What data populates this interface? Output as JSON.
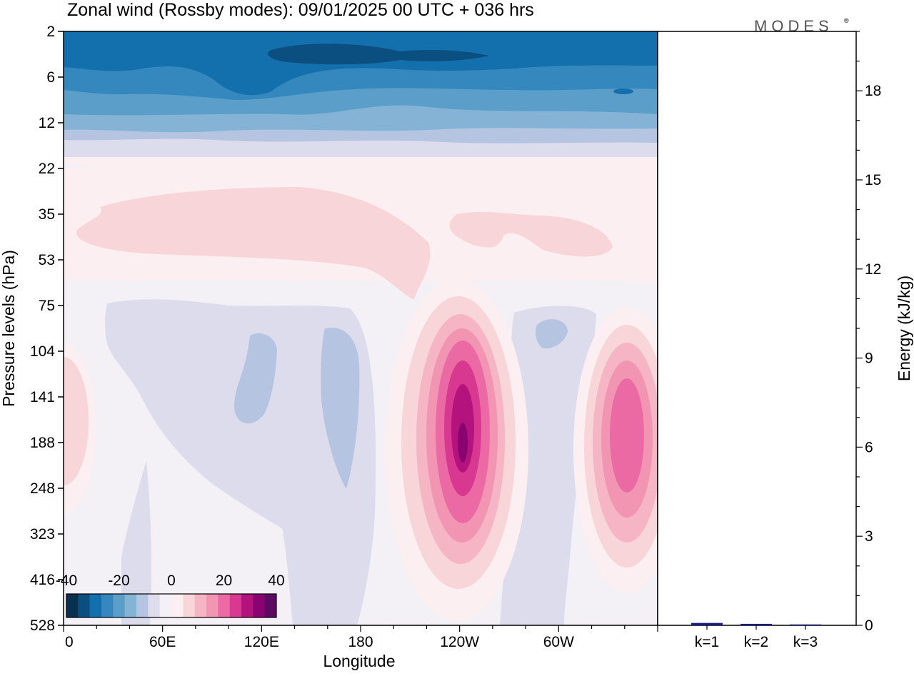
{
  "title": "Zonal wind (Rossby modes):  09/01/2025  00 UTC  + 036 hrs",
  "brand": "MODES",
  "brand_mark": "®",
  "colors": {
    "neg": [
      "#08304f",
      "#0b4f80",
      "#1470ad",
      "#3488bd",
      "#5a9ec9",
      "#85b3d6",
      "#b5c4e0",
      "#dcdcec"
    ],
    "near_zero": [
      "#f3f0f6",
      "#fbeff2"
    ],
    "pos": [
      "#f8d5d8",
      "#f6b5c4",
      "#f195b3",
      "#ec6aa4",
      "#d8388f",
      "#b4137e",
      "#8a0471",
      "#5c0a64"
    ]
  },
  "chart_data": [
    {
      "type": "heatmap",
      "field": "zonal wind (Rossby modes)",
      "xlabel": "Longitude",
      "ylabel": "Pressure levels (hPa)",
      "x_ticks": [
        "0",
        "60E",
        "120E",
        "180",
        "120W",
        "60W"
      ],
      "x_tick_degrees": [
        0,
        60,
        120,
        180,
        240,
        300
      ],
      "xlim": [
        0,
        360
      ],
      "y_levels": [
        "2",
        "6",
        "12",
        "22",
        "35",
        "53",
        "75",
        "104",
        "141",
        "188",
        "248",
        "323",
        "416",
        "528"
      ],
      "ylim": [
        2,
        528
      ],
      "colorbar": {
        "ticks": [
          "-40",
          "-20",
          "0",
          "20",
          "40"
        ],
        "range": [
          -40,
          40
        ],
        "bins": 18
      },
      "features": [
        {
          "longitude": 240,
          "pressure": 188,
          "value": 42
        },
        {
          "longitude": 340,
          "pressure": 188,
          "value": 22
        },
        {
          "longitude": 0,
          "pressure": 188,
          "value": 5
        },
        {
          "longitude": 70,
          "pressure": 4,
          "value": -32
        },
        {
          "longitude": 200,
          "pressure": 4,
          "value": -35
        },
        {
          "longitude": 160,
          "pressure": 160,
          "value": -8
        },
        {
          "longitude": 290,
          "pressure": 104,
          "value": -8
        },
        {
          "longitude": 120,
          "pressure": 35,
          "value": 5
        }
      ]
    },
    {
      "type": "bar",
      "categories": [
        "k=1",
        "k=2",
        "k=3"
      ],
      "values": [
        0.08,
        0.05,
        0.03
      ],
      "ylabel": "Energy (kJ/kg)",
      "y_ticks": [
        "0",
        "3",
        "6",
        "9",
        "12",
        "15",
        "18"
      ],
      "ylim": [
        0,
        20
      ],
      "bar_color": "#1a1a8c"
    }
  ]
}
